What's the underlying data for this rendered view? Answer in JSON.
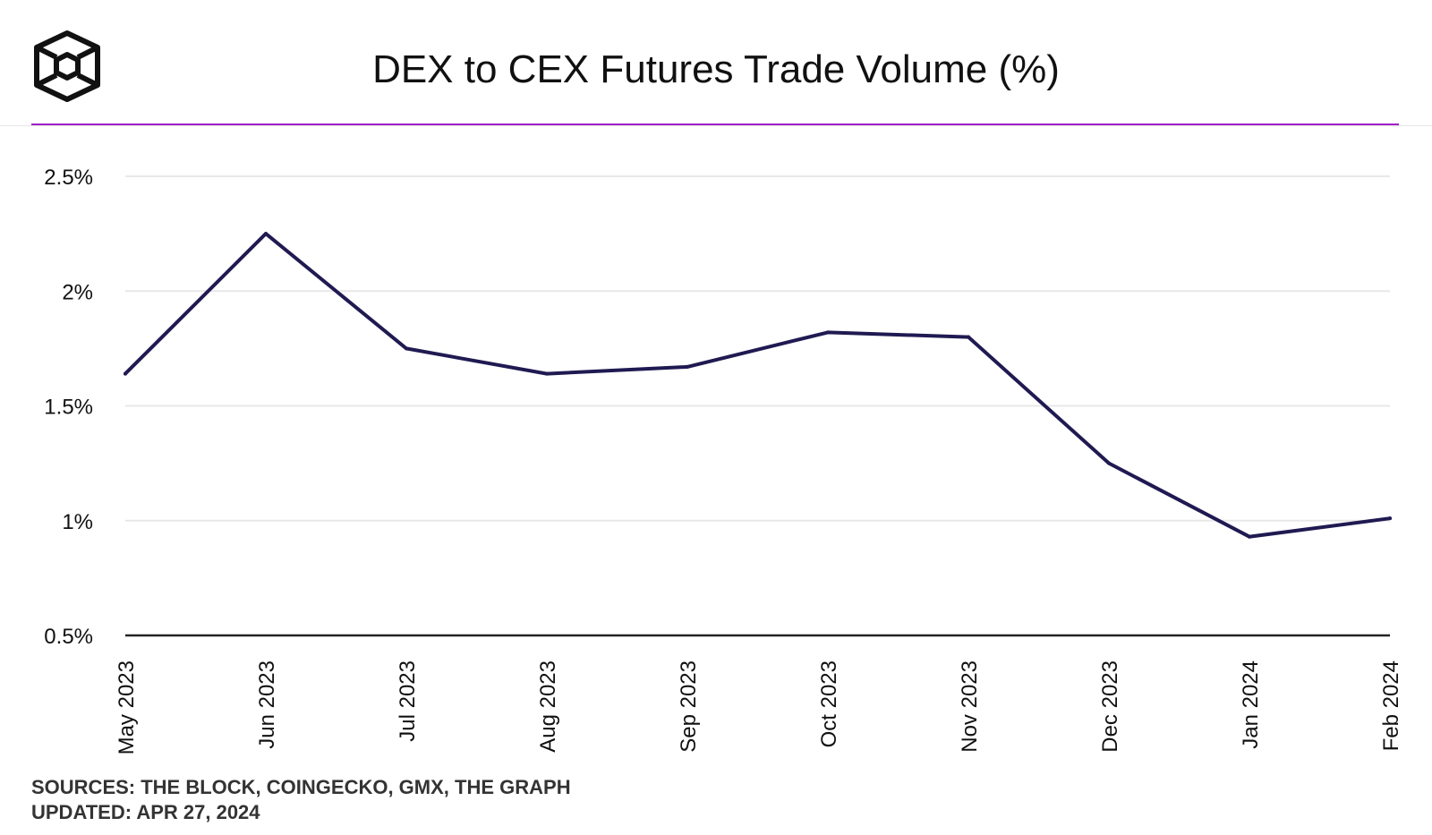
{
  "header": {
    "title": "DEX to CEX Futures Trade Volume (%)",
    "logo_icon": "the-block-cube-logo-icon"
  },
  "colors": {
    "accent": "#a020c8",
    "line": "#201a52",
    "grid": "#e8e8e8",
    "axis": "#222222",
    "text": "#111111"
  },
  "chart_data": {
    "type": "line",
    "categories": [
      "May 2023",
      "Jun 2023",
      "Jul 2023",
      "Aug 2023",
      "Sep 2023",
      "Oct 2023",
      "Nov 2023",
      "Dec 2023",
      "Jan 2024",
      "Feb 2024"
    ],
    "series": [
      {
        "values": [
          1.64,
          2.25,
          1.75,
          1.64,
          1.67,
          1.82,
          1.8,
          1.25,
          0.93,
          1.01
        ]
      }
    ],
    "yticks": [
      "0.5%",
      "1%",
      "1.5%",
      "2%",
      "2.5%"
    ],
    "ytick_values": [
      0.5,
      1,
      1.5,
      2,
      2.5
    ],
    "ylim": [
      0.5,
      2.5
    ],
    "grid": true,
    "legend": "none"
  },
  "footer": {
    "sources": "SOURCES: THE BLOCK, COINGECKO, GMX, THE GRAPH",
    "updated": "UPDATED: APR 27, 2024"
  }
}
